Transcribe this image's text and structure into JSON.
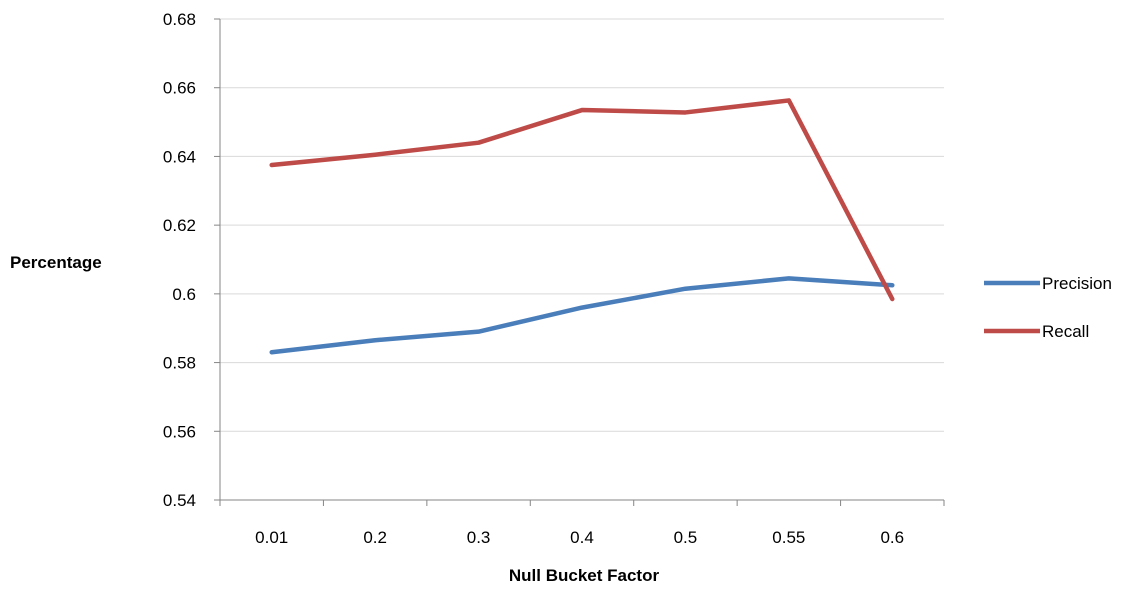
{
  "chart_data": {
    "type": "line",
    "xlabel": "Null Bucket Factor",
    "ylabel": "Percentage",
    "categories": [
      "0.01",
      "0.2",
      "0.3",
      "0.4",
      "0.5",
      "0.55",
      "0.6"
    ],
    "ylim": [
      0.54,
      0.68
    ],
    "yticks": [
      0.54,
      0.56,
      0.58,
      0.6,
      0.62,
      0.64,
      0.66,
      0.68
    ],
    "ytick_labels": [
      "0.54",
      "0.56",
      "0.58",
      "0.6",
      "0.62",
      "0.64",
      "0.66",
      "0.68"
    ],
    "grid": true,
    "legend_position": "right",
    "series": [
      {
        "name": "Precision",
        "color": "#4a7ebb",
        "values": [
          0.583,
          0.5865,
          0.589,
          0.596,
          0.6015,
          0.6045,
          0.6025
        ]
      },
      {
        "name": "Recall",
        "color": "#be4b48",
        "values": [
          0.6375,
          0.6405,
          0.644,
          0.6535,
          0.6528,
          0.6563,
          0.5985
        ]
      }
    ]
  }
}
